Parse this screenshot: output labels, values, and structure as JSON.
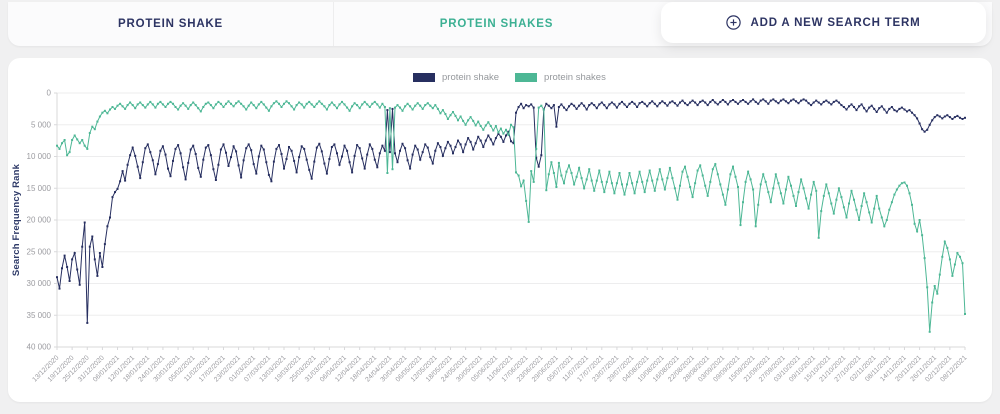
{
  "tabs": [
    {
      "label": "PROTEIN SHAKE",
      "color": "#2d3463"
    },
    {
      "label": "PROTEIN SHAKES",
      "color": "#3cb093"
    },
    {
      "label": "ADD A NEW SEARCH TERM",
      "icon": "plus-circle",
      "color": "#2d3463"
    }
  ],
  "chart_data": {
    "type": "line",
    "title": "",
    "xlabel": "",
    "ylabel": "Search Frequency Rank",
    "y_inverted": true,
    "ylim": [
      0,
      40000
    ],
    "grid": "horizontal",
    "legend_position": "top-center",
    "y_tick_values": [
      0,
      5000,
      10000,
      15000,
      20000,
      25000,
      30000,
      35000,
      40000
    ],
    "y_tick_labels": [
      "0",
      "5 000",
      "10 000",
      "15 000",
      "20 000",
      "25 000",
      "30 000",
      "35 000",
      "40 000"
    ],
    "x_start_date": "13/12/2020",
    "x_end_date": "08/12/2021",
    "x_point_interval_days": 1,
    "x_tick_interval_days": 6,
    "x_tick_labels": [
      "13/12/2020",
      "19/12/2020",
      "25/12/2020",
      "31/12/2020",
      "06/01/2021",
      "12/01/2021",
      "18/01/2021",
      "24/01/2021",
      "30/01/2021",
      "05/02/2021",
      "11/02/2021",
      "17/02/2021",
      "23/02/2021",
      "01/03/2021",
      "07/03/2021",
      "13/03/2021",
      "19/03/2021",
      "25/03/2021",
      "31/03/2021",
      "06/04/2021",
      "12/04/2021",
      "18/04/2021",
      "24/04/2021",
      "30/04/2021",
      "06/05/2021",
      "12/05/2021",
      "18/05/2021",
      "24/05/2021",
      "30/05/2021",
      "05/06/2021",
      "11/06/2021",
      "17/06/2021",
      "23/06/2021",
      "29/06/2021",
      "05/07/2021",
      "11/07/2021",
      "17/07/2021",
      "23/07/2021",
      "29/07/2021",
      "04/08/2021",
      "10/08/2021",
      "16/08/2021",
      "22/08/2021",
      "28/08/2021",
      "03/09/2021",
      "09/09/2021",
      "15/09/2021",
      "21/09/2021",
      "27/09/2021",
      "03/10/2021",
      "09/10/2021",
      "15/10/2021",
      "21/10/2021",
      "27/10/2021",
      "02/11/2021",
      "08/11/2021",
      "14/11/2021",
      "20/11/2021",
      "26/11/2021",
      "02/12/2021",
      "08/12/2021"
    ],
    "legend": [
      {
        "name": "protein shake",
        "color": "#272f60"
      },
      {
        "name": "protein shakes",
        "color": "#4db795"
      }
    ],
    "series": [
      {
        "name": "protein shake",
        "color": "#272f60",
        "values": [
          29000,
          30800,
          27600,
          25600,
          27400,
          29600,
          26200,
          25200,
          27800,
          30200,
          24200,
          20400,
          36200,
          24200,
          22600,
          26200,
          28800,
          25200,
          27400,
          23800,
          21000,
          19600,
          16400,
          15600,
          15100,
          13900,
          12300,
          13800,
          11300,
          9800,
          8600,
          9900,
          11600,
          13400,
          10900,
          8700,
          8100,
          9300,
          10600,
          12800,
          11200,
          9100,
          8400,
          9700,
          11900,
          13100,
          10700,
          8800,
          8200,
          9500,
          11700,
          13600,
          11000,
          8900,
          8300,
          9600,
          11800,
          13200,
          10500,
          8600,
          8200,
          9800,
          12000,
          13700,
          11300,
          8900,
          8100,
          9400,
          11500,
          10100,
          8400,
          9200,
          11400,
          13300,
          10600,
          8700,
          8100,
          9000,
          11200,
          12700,
          10000,
          8300,
          8900,
          10900,
          12900,
          13900,
          10800,
          8800,
          8200,
          9600,
          11900,
          10400,
          8500,
          9100,
          10700,
          12500,
          10100,
          8400,
          8800,
          10500,
          12100,
          13500,
          10800,
          8600,
          8000,
          9200,
          11100,
          12700,
          10400,
          8500,
          8100,
          9500,
          11300,
          10000,
          8300,
          9100,
          10900,
          12500,
          9900,
          8200,
          8700,
          10300,
          11900,
          9700,
          8100,
          8800,
          10500,
          11700,
          9500,
          8300,
          9100,
          2700,
          9300,
          2500,
          9500,
          10900,
          9100,
          8000,
          8700,
          10600,
          11900,
          9700,
          8300,
          8900,
          10500,
          9300,
          8100,
          8600,
          10100,
          11100,
          9100,
          7900,
          8500,
          9900,
          8700,
          7700,
          8300,
          9500,
          8500,
          7500,
          8100,
          9300,
          8100,
          7100,
          7700,
          8900,
          7900,
          6900,
          7500,
          8500,
          7500,
          6700,
          7300,
          8100,
          7100,
          6400,
          6900,
          7700,
          6700,
          6100,
          7600,
          7900,
          3100,
          2200,
          1700,
          2400,
          1900,
          2100,
          1800,
          2300,
          10200,
          11600,
          9800,
          2600,
          1700,
          2000,
          2400,
          1900,
          5300,
          2200,
          1800,
          2300,
          2700,
          2100,
          1700,
          2000,
          2500,
          2000,
          1600,
          2000,
          2600,
          1900,
          1600,
          1900,
          2400,
          1800,
          1500,
          1900,
          2400,
          1800,
          1500,
          1800,
          2300,
          1700,
          1400,
          1800,
          2200,
          1700,
          1400,
          1700,
          2200,
          1600,
          1400,
          1700,
          2100,
          1600,
          1300,
          1700,
          2100,
          1600,
          1300,
          1600,
          2000,
          1500,
          1300,
          1600,
          2000,
          1500,
          1200,
          1600,
          1900,
          1500,
          1200,
          1500,
          1900,
          1400,
          1200,
          1500,
          1900,
          1400,
          1100,
          1500,
          1800,
          1400,
          1100,
          1400,
          1800,
          1300,
          1100,
          1400,
          1700,
          1300,
          1100,
          1400,
          1700,
          1300,
          1000,
          1400,
          1700,
          1200,
          1000,
          1300,
          1700,
          1200,
          1000,
          1300,
          1600,
          1200,
          1000,
          1300,
          1600,
          1200,
          1000,
          1300,
          1600,
          1200,
          1000,
          1200,
          1600,
          1900,
          1500,
          1200,
          1500,
          1800,
          1400,
          1200,
          1500,
          1800,
          1400,
          1200,
          1500,
          1900,
          2200,
          2600,
          2100,
          1800,
          2200,
          2700,
          2100,
          1800,
          2400,
          2900,
          2300,
          2000,
          2500,
          3000,
          2400,
          2100,
          2600,
          3100,
          2500,
          2200,
          2700,
          2900,
          2500,
          2300,
          2600,
          2900,
          2700,
          3100,
          3500,
          4000,
          4800,
          5700,
          6100,
          5800,
          5000,
          4300,
          3800,
          3500,
          3700,
          4000,
          3700,
          3500,
          3800,
          4100,
          3800,
          3600,
          3900,
          4100,
          3900
        ]
      },
      {
        "name": "protein shakes",
        "color": "#4db795",
        "values": [
          8300,
          8800,
          7900,
          7400,
          9800,
          9300,
          7400,
          6700,
          7300,
          7900,
          7400,
          8300,
          8800,
          6300,
          5300,
          5700,
          4500,
          3700,
          3100,
          2800,
          3200,
          2600,
          2200,
          2500,
          2000,
          1700,
          2100,
          2500,
          1900,
          1500,
          1900,
          2400,
          1800,
          1500,
          1900,
          2300,
          1800,
          1400,
          1800,
          2300,
          1700,
          1400,
          1800,
          2200,
          1700,
          1400,
          1700,
          2200,
          2600,
          2000,
          1600,
          2000,
          2500,
          1900,
          1500,
          1900,
          2400,
          2900,
          2200,
          1700,
          1500,
          1900,
          2400,
          1800,
          1400,
          1700,
          2200,
          1700,
          1300,
          1700,
          2100,
          1600,
          1300,
          1700,
          2100,
          2600,
          2000,
          1500,
          1900,
          2400,
          1800,
          1400,
          1800,
          2300,
          2800,
          2100,
          1600,
          1300,
          1700,
          2200,
          1700,
          1300,
          1600,
          2100,
          2600,
          1900,
          1500,
          1800,
          2300,
          1700,
          1400,
          1800,
          2200,
          1700,
          1300,
          1700,
          2100,
          2600,
          1900,
          1500,
          1900,
          2400,
          1800,
          1400,
          1800,
          2300,
          2800,
          2100,
          1600,
          1900,
          2400,
          1800,
          1400,
          1800,
          2200,
          1700,
          1400,
          1800,
          2300,
          1700,
          2200,
          12600,
          2400,
          12000,
          2300,
          1900,
          2300,
          2800,
          2100,
          1700,
          2100,
          2600,
          2000,
          1600,
          2000,
          2500,
          1900,
          1600,
          2000,
          2400,
          1900,
          2500,
          3200,
          2700,
          3300,
          4100,
          3500,
          3000,
          3600,
          4300,
          3700,
          4400,
          5000,
          4300,
          3800,
          4400,
          5100,
          4500,
          5200,
          5800,
          5100,
          4600,
          5200,
          5900,
          5200,
          6200,
          5600,
          6400,
          5800,
          6600,
          5000,
          5400,
          12500,
          13000,
          14700,
          13800,
          17000,
          20300,
          12300,
          14000,
          8800,
          2300,
          2000,
          2600,
          15300,
          12800,
          10900,
          12600,
          14800,
          11000,
          13000,
          14200,
          12400,
          11400,
          12600,
          14400,
          13200,
          11800,
          13400,
          15000,
          13600,
          12000,
          13800,
          15400,
          13800,
          12200,
          14000,
          15600,
          14000,
          12400,
          14200,
          15800,
          14200,
          12600,
          14400,
          16000,
          14400,
          12600,
          14200,
          15800,
          14000,
          12400,
          14000,
          15600,
          13800,
          12200,
          13800,
          15400,
          13600,
          12000,
          13600,
          15200,
          13400,
          11800,
          13400,
          15000,
          16800,
          14600,
          12400,
          11600,
          13200,
          14800,
          16400,
          14200,
          12200,
          11400,
          13000,
          14600,
          16200,
          14000,
          12000,
          11200,
          12800,
          14400,
          16000,
          17600,
          15200,
          12800,
          11600,
          13200,
          14800,
          20800,
          17200,
          14000,
          12400,
          13600,
          15200,
          21000,
          17600,
          14400,
          12800,
          14000,
          15600,
          17200,
          15000,
          12800,
          14200,
          15800,
          17400,
          15200,
          13200,
          14600,
          16200,
          17800,
          15600,
          13600,
          15000,
          16600,
          18200,
          16000,
          14000,
          15400,
          22800,
          18600,
          16200,
          14400,
          15800,
          17400,
          19000,
          16800,
          15000,
          16400,
          18000,
          19600,
          17400,
          15400,
          16800,
          18400,
          20000,
          17800,
          15800,
          17200,
          18800,
          20400,
          18200,
          16200,
          18200,
          19600,
          21000,
          20000,
          18400,
          17200,
          16000,
          15200,
          14600,
          14200,
          14100,
          14600,
          15800,
          17600,
          20600,
          21800,
          20000,
          22400,
          26000,
          30600,
          37600,
          33000,
          30400,
          31600,
          28600,
          25800,
          23400,
          24400,
          26200,
          28800,
          27000,
          25200,
          25800,
          26800,
          34800
        ]
      }
    ]
  }
}
